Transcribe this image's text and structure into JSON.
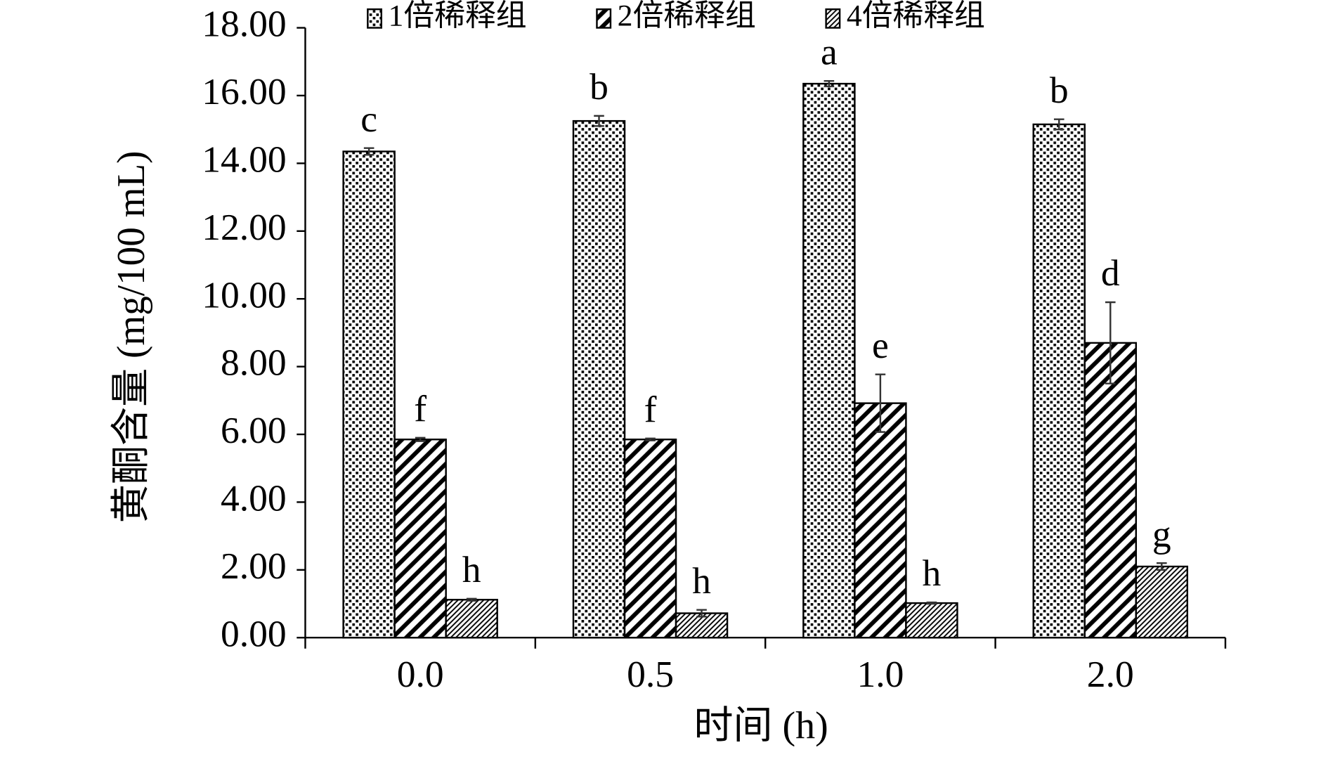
{
  "chart_data": {
    "type": "bar",
    "x_label": "时间 (h)",
    "y_label": "黄酮含量 (mg/100 mL)",
    "categories": [
      "0.0",
      "0.5",
      "1.0",
      "2.0"
    ],
    "ylim": [
      0,
      18
    ],
    "yticks": [
      {
        "value": 0,
        "label": "0.00"
      },
      {
        "value": 2,
        "label": "2.00"
      },
      {
        "value": 4,
        "label": "4.00"
      },
      {
        "value": 6,
        "label": "6.00"
      },
      {
        "value": 8,
        "label": "8.00"
      },
      {
        "value": 10,
        "label": "10.00"
      },
      {
        "value": 12,
        "label": "12.00"
      },
      {
        "value": 14,
        "label": "14.00"
      },
      {
        "value": 16,
        "label": "16.00"
      },
      {
        "value": 18,
        "label": "18.00"
      }
    ],
    "series": [
      {
        "name": "1倍稀释组",
        "color": "#000000",
        "pattern": "checker",
        "values": [
          14.35,
          15.25,
          16.35,
          15.15
        ],
        "errors": [
          0.1,
          0.15,
          0.08,
          0.15
        ],
        "letters": [
          "c",
          "b",
          "a",
          "b"
        ]
      },
      {
        "name": "2倍稀释组",
        "color": "#000000",
        "pattern": "wide-stripes",
        "values": [
          5.85,
          5.85,
          6.92,
          8.7
        ],
        "errors": [
          0.05,
          0.03,
          0.85,
          1.2
        ],
        "letters": [
          "f",
          "f",
          "e",
          "d"
        ]
      },
      {
        "name": "4倍稀释组",
        "color": "#000000",
        "pattern": "thin-stripes",
        "values": [
          1.12,
          0.72,
          1.02,
          2.1
        ],
        "errors": [
          0.03,
          0.1,
          0.02,
          0.1
        ],
        "letters": [
          "h",
          "h",
          "h",
          "g"
        ]
      }
    ]
  }
}
